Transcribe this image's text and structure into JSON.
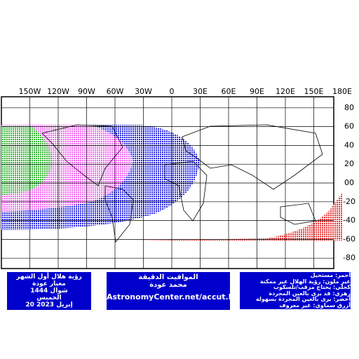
{
  "lon_ticks": [
    {
      "value": -150,
      "label": "150W"
    },
    {
      "value": -120,
      "label": "120W"
    },
    {
      "value": -90,
      "label": "90W"
    },
    {
      "value": -60,
      "label": "60W"
    },
    {
      "value": -30,
      "label": "30W"
    },
    0,
    {
      "value": 30,
      "label": "30E"
    },
    {
      "value": 60,
      "label": "60E"
    },
    {
      "value": 90,
      "label": "90E"
    },
    {
      "value": 120,
      "label": "120E"
    },
    {
      "value": 150,
      "label": "150E"
    },
    {
      "value": 180,
      "label": "180E"
    }
  ],
  "lat_ticks": [
    80,
    60,
    40,
    20,
    {
      "value": 0,
      "label": "00"
    },
    -20,
    -40,
    -60,
    -80
  ],
  "left_box": [
    "رؤية هلال أول الشهر",
    "معيار عودة",
    "شوال 1444",
    "الخميس",
    "20 إبريل 2023"
  ],
  "middle_box": [
    "المواقيت الدقيقة",
    "محمد عودة",
    "AstronomyCenter.net/accut.html"
  ],
  "legend_box": [
    "أحمر: مستحيل",
    "غير ملون: رؤية الهلال غير ممكنة",
    "كحلي: يحتاج مرقب/تلسكوب",
    "زهري: قد يرى بالعين المجردة",
    "أخضر: يرى بالعين المجردة بسهولة",
    "أزرق سماوي: غير معروف"
  ]
}
